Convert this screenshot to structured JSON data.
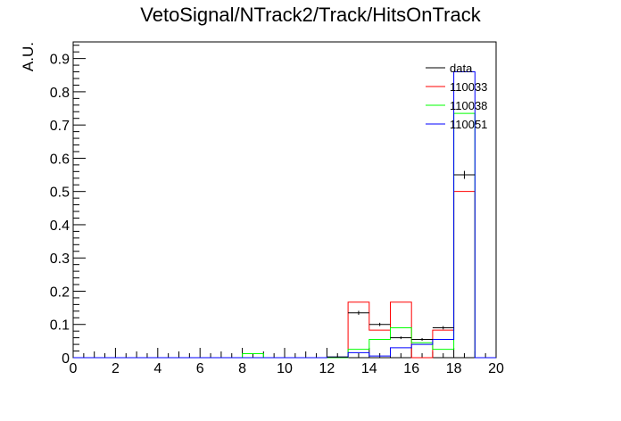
{
  "chart_data": {
    "type": "histogram",
    "title": "VetoSignal/NTrack2/Track/HitsOnTrack",
    "xlabel": "",
    "ylabel": "A.U.",
    "xlim": [
      0,
      20
    ],
    "ylim": [
      0,
      0.95
    ],
    "bin_edges": [
      0,
      1,
      2,
      3,
      4,
      5,
      6,
      7,
      8,
      9,
      10,
      11,
      12,
      13,
      14,
      15,
      16,
      17,
      18,
      19,
      20
    ],
    "x_ticks": [
      0,
      2,
      4,
      6,
      8,
      10,
      12,
      14,
      16,
      18,
      20
    ],
    "y_ticks": [
      0,
      0.1,
      0.2,
      0.3,
      0.4,
      0.5,
      0.6,
      0.7,
      0.8,
      0.9
    ],
    "x_tick_labels": [
      "0",
      "2",
      "4",
      "6",
      "8",
      "10",
      "12",
      "14",
      "16",
      "18",
      "20"
    ],
    "y_tick_labels": [
      "0",
      "0.1",
      "0.2",
      "0.3",
      "0.4",
      "0.5",
      "0.6",
      "0.7",
      "0.8",
      "0.9"
    ],
    "legend_position": "top-right",
    "grid": false,
    "series": [
      {
        "name": "data",
        "color": "#000000",
        "style": "points-with-errors",
        "values": [
          0,
          0,
          0,
          0,
          0,
          0,
          0,
          0,
          0,
          0,
          0,
          0,
          0.002,
          0.135,
          0.1,
          0.06,
          0.055,
          0.09,
          0.55,
          0
        ],
        "errors": [
          0,
          0,
          0,
          0,
          0,
          0,
          0,
          0,
          0,
          0,
          0,
          0,
          0.002,
          0.006,
          0.005,
          0.004,
          0.004,
          0.005,
          0.012,
          0
        ]
      },
      {
        "name": "110033",
        "color": "#ff0000",
        "style": "step",
        "values": [
          0,
          0,
          0,
          0,
          0,
          0,
          0,
          0,
          0,
          0,
          0,
          0,
          0,
          0.167,
          0.083,
          0.167,
          0,
          0.083,
          0.5,
          0
        ]
      },
      {
        "name": "110038",
        "color": "#00ff00",
        "style": "step",
        "values": [
          0,
          0,
          0,
          0,
          0,
          0,
          0,
          0,
          0.012,
          0,
          0,
          0,
          0,
          0.025,
          0.055,
          0.09,
          0.045,
          0.025,
          0.735,
          0
        ]
      },
      {
        "name": "110051",
        "color": "#0000ff",
        "style": "step",
        "values": [
          0,
          0,
          0,
          0,
          0,
          0,
          0,
          0,
          0,
          0,
          0,
          0,
          0.002,
          0.015,
          0.005,
          0.03,
          0.04,
          0.055,
          0.86,
          0
        ]
      }
    ]
  }
}
